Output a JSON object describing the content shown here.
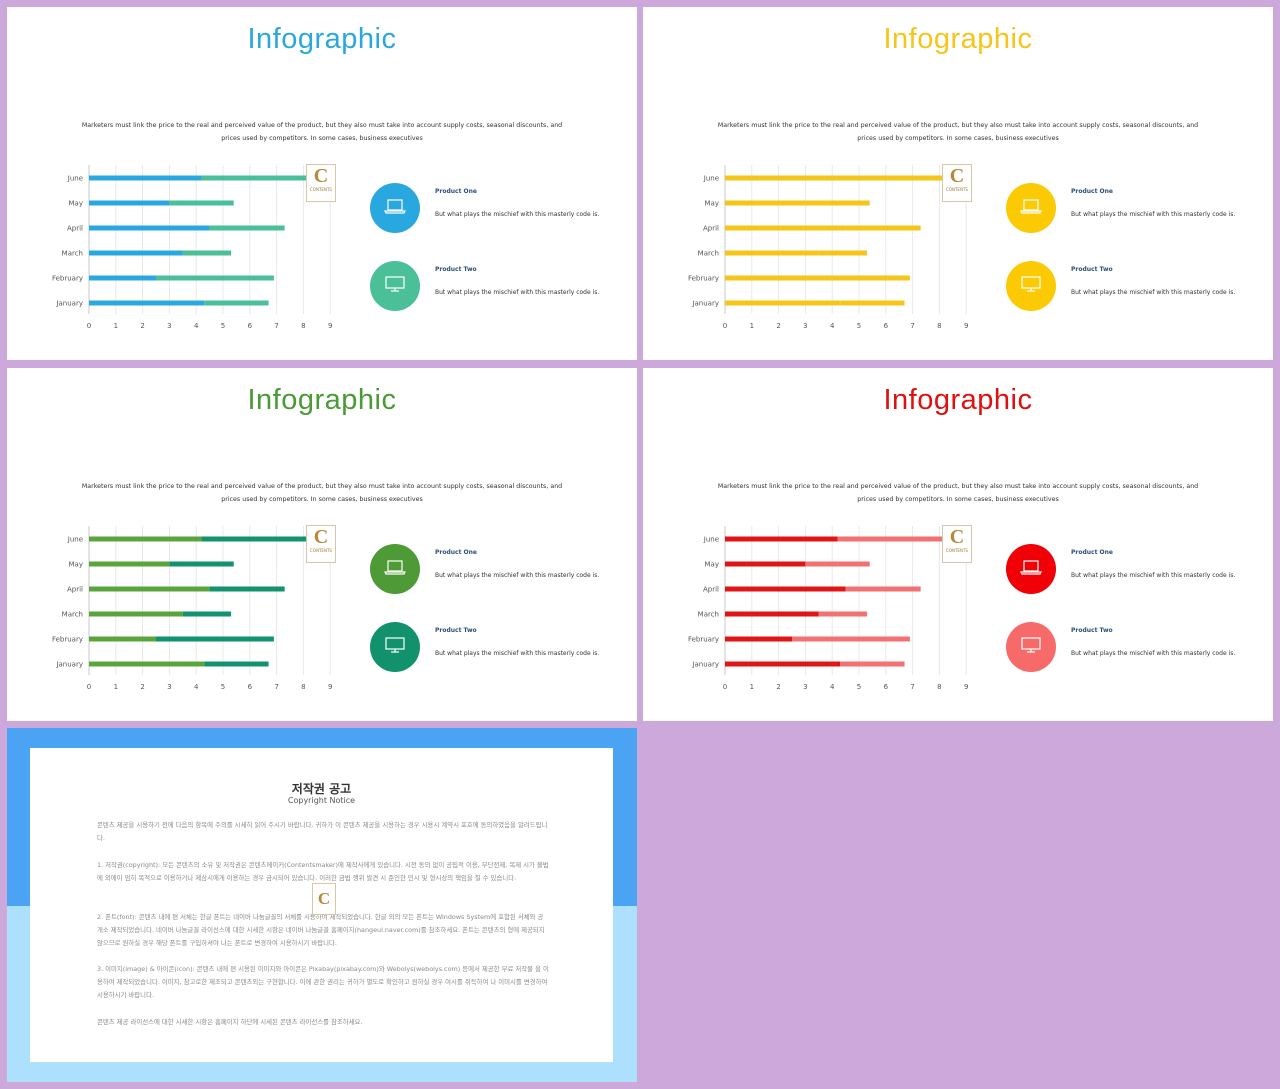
{
  "slides": [
    {
      "id": "slide-blue",
      "title": "Infographic",
      "title_color": "#29a8e0",
      "color_primary": "#29a8e0",
      "color_secondary": "#4bbf98",
      "description": "Marketers must link the price to the real and perceived value of the product, but they also must take into account supply costs, seasonal discounts, and prices used by competitors. In some cases, business executives",
      "logo": {
        "letter": "C",
        "text": "CONTENTS"
      },
      "products": [
        {
          "label": "Product One",
          "text": "But what plays the mischief with this masterly code is.",
          "icon": "laptop-icon",
          "color": "#29a8e0"
        },
        {
          "label": "Product Two",
          "text": "But what plays the mischief with this masterly code is.",
          "icon": "monitor-icon",
          "color": "#4bbf98"
        }
      ]
    },
    {
      "id": "slide-yellow",
      "title": "Infographic",
      "title_color": "#f6c519",
      "color_primary": "#f6c519",
      "color_secondary": "#f6c519",
      "description": "Marketers must link the price to the real and perceived value of the product, but they also must take into account supply costs, seasonal discounts, and prices used by competitors. In some cases, business executives",
      "logo": {
        "letter": "C",
        "text": "CONTENTS"
      },
      "products": [
        {
          "label": "Product One",
          "text": "But what plays the mischief with this masterly code is.",
          "icon": "laptop-icon",
          "color": "#fbca04"
        },
        {
          "label": "Product Two",
          "text": "But what plays the mischief with this masterly code is.",
          "icon": "monitor-icon",
          "color": "#fbca04"
        }
      ]
    },
    {
      "id": "slide-green",
      "title": "Infographic",
      "title_color": "#4a9a36",
      "color_primary": "#5aa43c",
      "color_secondary": "#12926e",
      "description": "Marketers must link the price to the real and perceived value of the product, but they also must take into account supply costs, seasonal discounts, and prices used by competitors. In some cases, business executives",
      "logo": {
        "letter": "C",
        "text": "CONTENTS"
      },
      "products": [
        {
          "label": "Product One",
          "text": "But what plays the mischief with this masterly code is.",
          "icon": "laptop-icon",
          "color": "#4e9a36"
        },
        {
          "label": "Product Two",
          "text": "But what plays the mischief with this masterly code is.",
          "icon": "monitor-icon",
          "color": "#11926c"
        }
      ]
    },
    {
      "id": "slide-red",
      "title": "Infographic",
      "title_color": "#e01010",
      "color_primary": "#e01515",
      "color_secondary": "#f07272",
      "description": "Marketers must link the price to the real and perceived value of the product, but they also must take into account supply costs, seasonal discounts, and prices used by competitors. In some cases, business executives",
      "logo": {
        "letter": "C",
        "text": "CONTENTS"
      },
      "products": [
        {
          "label": "Product One",
          "text": "But what plays the mischief with this masterly code is.",
          "icon": "laptop-icon",
          "color": "#f20008"
        },
        {
          "label": "Product Two",
          "text": "But what plays the mischief with this masterly code is.",
          "icon": "monitor-icon",
          "color": "#f76a6a"
        }
      ]
    }
  ],
  "chart_data": {
    "type": "bar",
    "orientation": "horizontal",
    "stacked": true,
    "categories": [
      "June",
      "May",
      "April",
      "March",
      "February",
      "January"
    ],
    "series": [
      {
        "values": [
          4.2,
          3.0,
          4.5,
          3.5,
          2.5,
          4.3
        ]
      },
      {
        "values": [
          4.0,
          2.4,
          2.8,
          1.8,
          4.4,
          2.4
        ]
      }
    ],
    "xlim": [
      0,
      9
    ],
    "xticks": [
      "0",
      "1",
      "2",
      "3",
      "4",
      "5",
      "6",
      "7",
      "8",
      "9"
    ],
    "grid": true,
    "legend": "none"
  },
  "copyright": {
    "title": "저작권 공고",
    "subtitle": "Copyright Notice",
    "paragraphs": [
      "콘텐츠 제공을 시용하기 전에 다음의 항목에 주의를 시세히 읽어 주시기 바랍니다. 귀하가 이 콘텐츠 제공을 시용하는 경우 시용시 계약시 포호에 동의하였음을 알려드립니다.",
      "1. 저작권(copyright): 모든 콘텐츠의 소유 및 저작권은 콘텐츠메이커(Contentsmaker)에 제작사에게 있습니다. 시전 동의 없이 공립적 이용, 무단전제, 복제 시가 불법에 외에이 엄히 목적으로 이용하거나 제삼시에게 이용하는 경우 금시되어 있습니다. 이러한 금법 행위 발견 시 준인한 민시 및 형시상의 책임을 질 수 있습니다.",
      "2. 폰트(font): 콘텐츠 내에 편 서체는 한글 폰트는 네이버 나눔글꼴의 서체를 시용하여 제작되었습니다. 한글 외의 모든 폰트는 Windows System에 포함된 서체와 공개소 제작되었습니다. 네이버 나눔글꼴 라이선스에 대한 시세한 시항은 네이버 나눔글꼴 홈페이지(hangeul.naver.com)를 참조하세요. 폰트는 콘텐츠의 형에 제공되지 않으므로 원하실 경우 해당 폰트를 구입하셔야 나는 폰트로 변경하여 시용하시기 바랍니다.",
      "3. 이미지(image) & 아이콘(icon): 콘텐츠 내에 편 시용된 이미지와 아이콘은 Pixabay(pixabay.com)와 Webolys(webolys.com) 등에서 제공한 무료 저작물 을 이용하여 제작되었습니다. 이미지, 참고로한 제조되고 콘텐츠외는 구현합니다. 이에 관한 권리는 귀하가 별도로 확인하고 원하실 경우 여시를 쥐득하여 나 이미시를 변경하여 시용하시기 바랍니다.",
      "콘텐츠 제공 라이선스에 대한 시세한 시항은 홈페이지 하단에 시세된 콘텐츠 라이선스를 참조하세요."
    ],
    "logo_letter": "C"
  }
}
